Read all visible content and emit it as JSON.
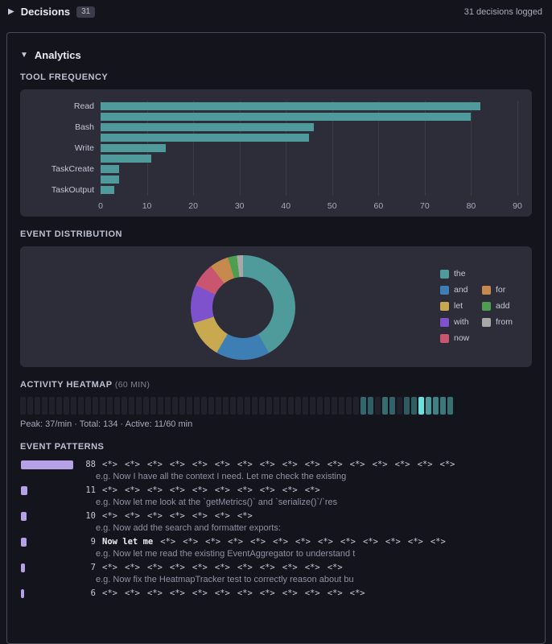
{
  "header": {
    "collapse_icon": "▶",
    "title": "Decisions",
    "badge": "31",
    "status": "31 decisions logged"
  },
  "analytics": {
    "collapse_icon": "▼",
    "title": "Analytics"
  },
  "labels": {
    "tool_frequency": "TOOL FREQUENCY",
    "event_distribution": "EVENT DISTRIBUTION",
    "activity_heatmap": "ACTIVITY HEATMAP",
    "heatmap_window": "(60 MIN)",
    "heatmap_stats": "Peak: 37/min · Total: 134 · Active: 11/60 min",
    "event_patterns": "EVENT PATTERNS"
  },
  "chart_data": [
    {
      "type": "bar",
      "orientation": "horizontal",
      "title": "TOOL FREQUENCY",
      "categories": [
        "Read",
        "",
        "Bash",
        "",
        "Write",
        "",
        "TaskCreate",
        "",
        "TaskOutput"
      ],
      "values": [
        82,
        80,
        46,
        45,
        14,
        11,
        4,
        4,
        3
      ],
      "xlim": [
        0,
        90
      ],
      "xticks": [
        0,
        10,
        20,
        30,
        40,
        50,
        60,
        70,
        80,
        90
      ],
      "bar_color": "#4f9a9a",
      "grid": true,
      "xlabel": "",
      "ylabel": ""
    },
    {
      "type": "pie",
      "donut": true,
      "title": "EVENT DISTRIBUTION",
      "labels": [
        "the",
        "and",
        "let",
        "with",
        "now",
        "for",
        "add",
        "from"
      ],
      "values": [
        41.7,
        16.7,
        11.7,
        11.9,
        7.5,
        5.8,
        2.8,
        1.9
      ],
      "colors": [
        "#4f9a9a",
        "#3d7eb5",
        "#c9a950",
        "#7e52cc",
        "#c95570",
        "#c78a4e",
        "#4e9e50",
        "#a8a8a8"
      ],
      "start_angle_deg": 0,
      "direction": "clockwise",
      "legend_position": "right"
    },
    {
      "type": "heatmap",
      "title": "ACTIVITY HEATMAP (60 MIN)",
      "bins": 60,
      "values": [
        0,
        0,
        0,
        0,
        0,
        0,
        0,
        0,
        0,
        0,
        0,
        0,
        0,
        0,
        0,
        0,
        0,
        0,
        0,
        0,
        0,
        0,
        0,
        0,
        0,
        0,
        0,
        0,
        0,
        0,
        0,
        0,
        0,
        0,
        0,
        0,
        0,
        0,
        0,
        0,
        0,
        0,
        0,
        0,
        0,
        0,
        0,
        8,
        6,
        0,
        9,
        7,
        0,
        5,
        6,
        37,
        20,
        14,
        12,
        10
      ],
      "peak_per_min": 37,
      "total": 134,
      "active_minutes": 11,
      "color_empty": "#21212c",
      "color_low": "#25454c",
      "color_high": "#6ce0dc"
    }
  ],
  "patterns": {
    "max_count": 88,
    "rows": [
      {
        "count": "88",
        "pattern": "<*>  <*>  <*>  <*>  <*>  <*>  <*>  <*>  <*>  <*>  <*>  <*>  <*>  <*>  <*>  <*>",
        "example": "e.g. Now I have all the context I need. Let me check the existing"
      },
      {
        "count": "11",
        "pattern": "<*>  <*>  <*>  <*>  <*>  <*>  <*>  <*>  <*>  <*>",
        "example": "e.g. Now let me look at the `getMetrics()` and `serialize()`/`res"
      },
      {
        "count": "10",
        "pattern": "<*>  <*>  <*>  <*>  <*>  <*>  <*>",
        "example": "e.g. Now add the search and formatter exports:"
      },
      {
        "count": "9",
        "pattern": "Now let me  <*>  <*>  <*>  <*>  <*>  <*>  <*>  <*>  <*>  <*>  <*>  <*>  <*>",
        "example": "e.g. Now let me read the existing EventAggregator to understand t"
      },
      {
        "count": "7",
        "pattern": "<*>  <*>  <*>  <*>  <*>  <*>  <*>  <*>  <*>  <*>  <*>",
        "example": "e.g. Now fix the HeatmapTracker test to correctly reason about bu"
      },
      {
        "count": "6",
        "pattern": "<*>  <*>  <*>  <*>  <*>  <*>  <*>  <*>  <*>  <*>  <*>  <*>",
        "example": ""
      }
    ]
  }
}
